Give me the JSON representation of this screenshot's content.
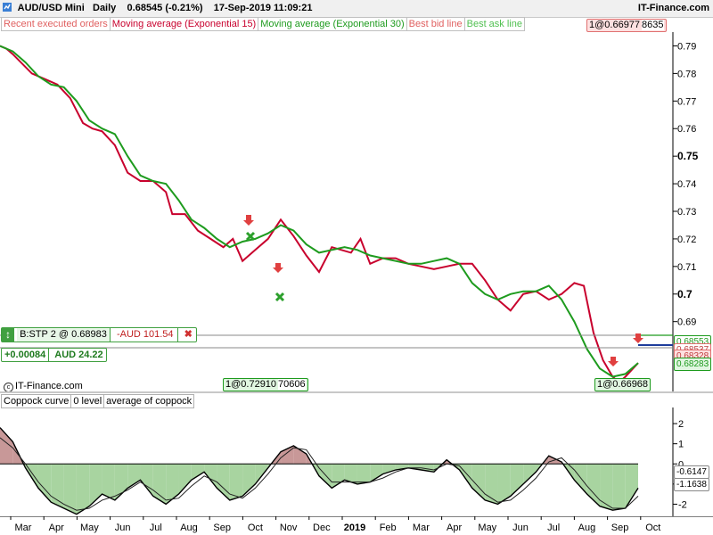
{
  "header": {
    "instrument": "AUD/USD Mini",
    "period": "Daily",
    "price": "0.68545 (-0.21%)",
    "datetime": "17-Sep-2019 11:09:21",
    "brand": "IT-Finance.com"
  },
  "legend": [
    {
      "label": "Recent executed orders",
      "color": "#e06060"
    },
    {
      "label": "Moving average (Exponential 15)",
      "color": "#c8002d"
    },
    {
      "label": "Moving average (Exponential 30)",
      "color": "#1e9b1e"
    },
    {
      "label": "Best bid line",
      "color": "#e06060"
    },
    {
      "label": "Best ask line",
      "color": "#50c050"
    }
  ],
  "top_price_box": {
    "left": "1@0.66977",
    "right": "8635"
  },
  "order_panel": {
    "direction_icon": "up-down-arrow-icon",
    "order": "B:STP  2 @ 0.68983",
    "pnl": "-AUD 101.54",
    "cancel": "✖",
    "diff": "+0.00084",
    "value": "AUD 24.22"
  },
  "bottom_boxes": {
    "mid_left": "1@0.72910",
    "mid_right": "70606",
    "right": "1@0.66968"
  },
  "price_labels": [
    "0.68553",
    "0.68537",
    "0.68328",
    "0.68283"
  ],
  "copyright": "IT-Finance.com",
  "colors": {
    "ema15": "#c8002d",
    "ema30": "#1e9b1e",
    "bid": "#1e3c9b",
    "coppock": "#000000"
  },
  "chart_data": [
    {
      "type": "line",
      "y_ticks": [
        "0.79",
        "0.78",
        "0.77",
        "0.76",
        "0.75",
        "0.74",
        "0.73",
        "0.72",
        "0.71",
        "0.7",
        "0.69"
      ],
      "ylim": [
        0.665,
        0.795
      ],
      "series": [
        {
          "name": "Moving average (Exponential 15)",
          "x": [
            0,
            0.01,
            0.02,
            0.05,
            0.07,
            0.09,
            0.11,
            0.13,
            0.145,
            0.16,
            0.18,
            0.2,
            0.22,
            0.24,
            0.26,
            0.27,
            0.29,
            0.31,
            0.33,
            0.35,
            0.365,
            0.38,
            0.4,
            0.42,
            0.44,
            0.46,
            0.48,
            0.5,
            0.52,
            0.535,
            0.55,
            0.565,
            0.58,
            0.6,
            0.62,
            0.64,
            0.66,
            0.68,
            0.7,
            0.72,
            0.74,
            0.76,
            0.78,
            0.8,
            0.82,
            0.84,
            0.86,
            0.88,
            0.9,
            0.915,
            0.93,
            0.945,
            0.96,
            0.97,
            0.98,
            1.0
          ],
          "values": [
            0.79,
            0.789,
            0.787,
            0.78,
            0.778,
            0.776,
            0.771,
            0.762,
            0.76,
            0.759,
            0.754,
            0.744,
            0.741,
            0.741,
            0.737,
            0.729,
            0.729,
            0.723,
            0.72,
            0.717,
            0.72,
            0.712,
            0.716,
            0.72,
            0.727,
            0.721,
            0.714,
            0.708,
            0.717,
            0.716,
            0.715,
            0.72,
            0.711,
            0.713,
            0.713,
            0.711,
            0.71,
            0.709,
            0.71,
            0.711,
            0.711,
            0.705,
            0.698,
            0.694,
            0.7,
            0.701,
            0.698,
            0.7,
            0.704,
            0.703,
            0.686,
            0.676,
            0.67,
            0.668,
            0.67,
            0.675
          ]
        },
        {
          "name": "Moving average (Exponential 30)",
          "x": [
            0,
            0.02,
            0.04,
            0.06,
            0.08,
            0.1,
            0.12,
            0.14,
            0.16,
            0.18,
            0.2,
            0.22,
            0.24,
            0.26,
            0.28,
            0.3,
            0.32,
            0.34,
            0.36,
            0.38,
            0.4,
            0.42,
            0.44,
            0.46,
            0.48,
            0.5,
            0.52,
            0.54,
            0.56,
            0.58,
            0.6,
            0.62,
            0.64,
            0.66,
            0.68,
            0.7,
            0.72,
            0.74,
            0.76,
            0.78,
            0.8,
            0.82,
            0.84,
            0.86,
            0.88,
            0.9,
            0.92,
            0.94,
            0.96,
            0.98,
            1.0
          ],
          "values": [
            0.79,
            0.788,
            0.784,
            0.779,
            0.776,
            0.775,
            0.77,
            0.763,
            0.76,
            0.758,
            0.75,
            0.743,
            0.741,
            0.74,
            0.734,
            0.727,
            0.724,
            0.72,
            0.717,
            0.719,
            0.72,
            0.722,
            0.725,
            0.723,
            0.718,
            0.715,
            0.716,
            0.717,
            0.716,
            0.714,
            0.713,
            0.712,
            0.711,
            0.711,
            0.712,
            0.713,
            0.711,
            0.704,
            0.7,
            0.698,
            0.7,
            0.701,
            0.701,
            0.703,
            0.698,
            0.69,
            0.68,
            0.673,
            0.67,
            0.671,
            0.675
          ]
        }
      ]
    },
    {
      "type": "area",
      "title": "Coppock curve",
      "y_ticks": [
        "2",
        "1",
        "0",
        "-1",
        "-2"
      ],
      "ylim": [
        -2.6,
        2.8
      ],
      "value_labels": [
        "-0.6147",
        "-1.1638"
      ],
      "x_ticks": [
        "Mar",
        "Apr",
        "May",
        "Jun",
        "Jul",
        "Aug",
        "Sep",
        "Oct",
        "Nov",
        "Dec",
        "2019",
        "Feb",
        "Mar",
        "Apr",
        "May",
        "Jun",
        "Jul",
        "Aug",
        "Sep",
        "Oct"
      ],
      "series": [
        {
          "name": "Coppock curve",
          "x": [
            0,
            0.02,
            0.04,
            0.06,
            0.08,
            0.1,
            0.12,
            0.14,
            0.16,
            0.18,
            0.2,
            0.22,
            0.24,
            0.26,
            0.28,
            0.3,
            0.32,
            0.34,
            0.36,
            0.38,
            0.4,
            0.42,
            0.44,
            0.46,
            0.48,
            0.5,
            0.52,
            0.54,
            0.56,
            0.58,
            0.6,
            0.62,
            0.64,
            0.66,
            0.68,
            0.7,
            0.72,
            0.74,
            0.76,
            0.78,
            0.8,
            0.82,
            0.84,
            0.86,
            0.88,
            0.9,
            0.92,
            0.94,
            0.96,
            0.98,
            1.0
          ],
          "values": [
            1.8,
            1.1,
            -0.2,
            -1.2,
            -1.9,
            -2.2,
            -2.5,
            -2.1,
            -1.5,
            -1.8,
            -1.2,
            -0.8,
            -1.6,
            -2.0,
            -1.5,
            -0.8,
            -0.4,
            -1.2,
            -1.8,
            -1.6,
            -1.0,
            -0.2,
            0.6,
            0.9,
            0.5,
            -0.6,
            -1.2,
            -0.8,
            -1.0,
            -0.9,
            -0.5,
            -0.3,
            -0.2,
            -0.3,
            -0.4,
            0.2,
            -0.3,
            -1.2,
            -1.8,
            -2.0,
            -1.6,
            -1.0,
            -0.4,
            0.4,
            0.1,
            -0.8,
            -1.5,
            -2.1,
            -2.3,
            -2.2,
            -1.2
          ]
        },
        {
          "name": "average of coppock",
          "x": [
            0,
            0.02,
            0.04,
            0.06,
            0.08,
            0.1,
            0.12,
            0.14,
            0.16,
            0.18,
            0.2,
            0.22,
            0.24,
            0.26,
            0.28,
            0.3,
            0.32,
            0.34,
            0.36,
            0.38,
            0.4,
            0.42,
            0.44,
            0.46,
            0.48,
            0.5,
            0.52,
            0.54,
            0.56,
            0.58,
            0.6,
            0.62,
            0.64,
            0.66,
            0.68,
            0.7,
            0.72,
            0.74,
            0.76,
            0.78,
            0.8,
            0.82,
            0.84,
            0.86,
            0.88,
            0.9,
            0.92,
            0.94,
            0.96,
            0.98,
            1.0
          ],
          "values": [
            1.3,
            0.8,
            0.0,
            -0.9,
            -1.6,
            -2.0,
            -2.3,
            -2.2,
            -1.8,
            -1.6,
            -1.3,
            -0.9,
            -1.3,
            -1.8,
            -1.7,
            -1.1,
            -0.6,
            -0.9,
            -1.5,
            -1.7,
            -1.2,
            -0.5,
            0.3,
            0.8,
            0.7,
            -0.2,
            -0.9,
            -0.9,
            -0.9,
            -0.9,
            -0.7,
            -0.4,
            -0.2,
            -0.2,
            -0.3,
            0.0,
            -0.1,
            -0.8,
            -1.5,
            -1.9,
            -1.8,
            -1.3,
            -0.7,
            0.1,
            0.3,
            -0.3,
            -1.1,
            -1.8,
            -2.2,
            -2.2,
            -1.6
          ]
        }
      ]
    }
  ],
  "sub_legend": [
    "Coppock curve",
    "0 level",
    "average of coppock"
  ]
}
